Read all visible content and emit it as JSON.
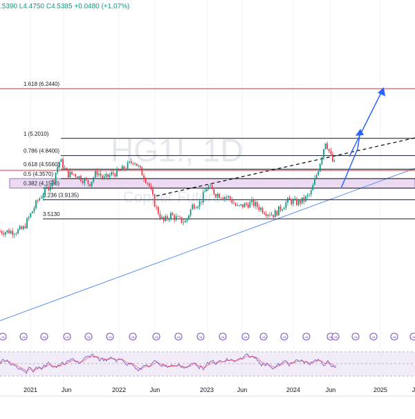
{
  "header": {
    "ohlc_text": ".5390 L4.4750 C4.5385 +0.0480 (+1.07%)"
  },
  "watermark": {
    "symbol": "HG1!, 1D",
    "name": "Copper Futures"
  },
  "colors": {
    "up": "#089981",
    "down": "#f23645",
    "fib_line": "#131722",
    "ext_line": "#d32f2f",
    "zone_fill": "#e8d4f0",
    "zone_border": "#7b5ea8",
    "trend_line": "#5b8def",
    "arrow": "#2962ff",
    "rsi_line": "#7e57c2",
    "rsi_line2": "#f23645",
    "grid": "#f0f3fa"
  },
  "chart_data": {
    "type": "candlestick",
    "title": "",
    "xlabel": "",
    "ylabel": "",
    "x_ticks": [
      "2021",
      "Jun",
      "2022",
      "Jun",
      "2023",
      "Jun",
      "2024",
      "Jun",
      "2025",
      "J"
    ],
    "fib_levels": [
      {
        "label": "1.618 (6.2440)",
        "value": 6.244
      },
      {
        "label": "1 (5.2010)",
        "value": 5.201
      },
      {
        "label": "0.786 (4.8400)",
        "value": 4.84
      },
      {
        "label": "0.618 (4.5560)",
        "value": 4.556
      },
      {
        "label": "0.5 (4.3570)",
        "value": 4.357
      },
      {
        "label": "0.382 (4.1580)",
        "value": 4.158
      },
      {
        "label": "0.236 (3.9135)",
        "value": 3.9135
      },
      {
        "label": "3.5130",
        "value": 3.513
      }
    ],
    "highlight_zone": [
      4.158,
      4.357
    ],
    "series_close_approx": [
      {
        "x": "2020-12",
        "y": 3.3
      },
      {
        "x": "2021-02",
        "y": 3.9
      },
      {
        "x": "2021-05",
        "y": 4.6
      },
      {
        "x": "2021-08",
        "y": 4.3
      },
      {
        "x": "2021-11",
        "y": 4.4
      },
      {
        "x": "2022-03",
        "y": 4.8
      },
      {
        "x": "2022-06",
        "y": 3.5
      },
      {
        "x": "2022-09",
        "y": 3.5
      },
      {
        "x": "2023-01",
        "y": 4.2
      },
      {
        "x": "2023-05",
        "y": 3.8
      },
      {
        "x": "2023-10",
        "y": 3.6
      },
      {
        "x": "2024-02",
        "y": 3.9
      },
      {
        "x": "2024-05",
        "y": 5.1
      },
      {
        "x": "2024-07",
        "y": 4.54
      }
    ],
    "rsi": {
      "type": "line",
      "range": [
        0,
        100
      ],
      "band": [
        30,
        70
      ]
    }
  }
}
